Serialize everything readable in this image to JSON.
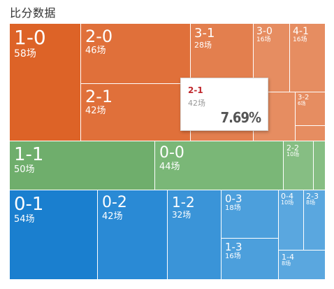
{
  "title": "比分数据",
  "cells": {
    "c10": {
      "score": "1-0",
      "count": "58场"
    },
    "c20": {
      "score": "2-0",
      "count": "46场"
    },
    "c31": {
      "score": "3-1",
      "count": "28场"
    },
    "c30": {
      "score": "3-0",
      "count": "16场"
    },
    "c41": {
      "score": "4-1",
      "count": "16场"
    },
    "c21": {
      "score": "2-1",
      "count": "42场"
    },
    "c32": {
      "score": "3-2",
      "count": "6场"
    },
    "c11": {
      "score": "1-1",
      "count": "50场"
    },
    "c00": {
      "score": "0-0",
      "count": "44场"
    },
    "c22": {
      "score": "2-2",
      "count": "10场"
    },
    "c01": {
      "score": "0-1",
      "count": "54场"
    },
    "c02": {
      "score": "0-2",
      "count": "42场"
    },
    "c12": {
      "score": "1-2",
      "count": "32场"
    },
    "c03": {
      "score": "0-3",
      "count": "18场"
    },
    "c04": {
      "score": "0-4",
      "count": "10场"
    },
    "c23": {
      "score": "2-3",
      "count": "8场"
    },
    "c13": {
      "score": "1-3",
      "count": "16场"
    },
    "c14": {
      "score": "1-4",
      "count": "8场"
    }
  },
  "tooltip": {
    "score": "2-1",
    "count": "42场",
    "percent": "7.69%"
  },
  "colors": {
    "home_win": "#dd6327",
    "draw": "#6fae6c",
    "away_win": "#1a7fcf",
    "tooltip_score": "#c0282d"
  }
}
